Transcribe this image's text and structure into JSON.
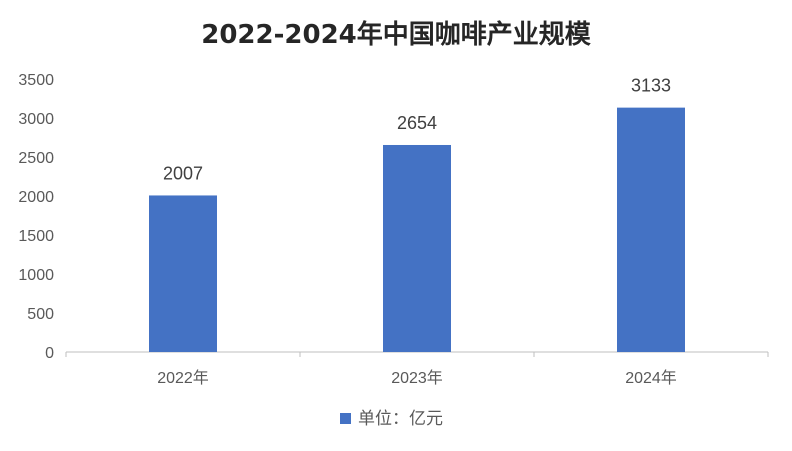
{
  "chart_data": {
    "type": "bar",
    "title": "2022-2024年中国咖啡产业规模",
    "categories": [
      "2022年",
      "2023年",
      "2024年"
    ],
    "series": [
      {
        "name": "单位：亿元",
        "values": [
          2007,
          2654,
          3133
        ]
      }
    ],
    "ylim": [
      0,
      3500
    ],
    "yticks": [
      0,
      500,
      1000,
      1500,
      2000,
      2500,
      3000,
      3500
    ],
    "grid": false,
    "legend": "bottom",
    "colors": {
      "bar": "#4472C4",
      "axis": "#BFBFBF"
    }
  }
}
